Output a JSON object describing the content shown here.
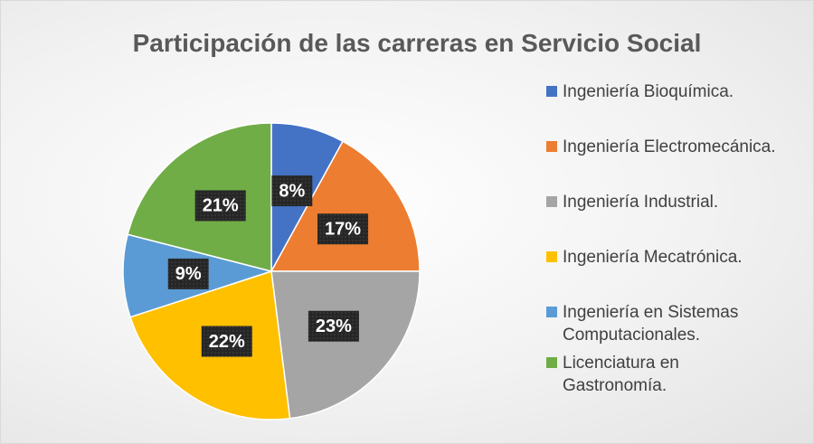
{
  "chart_data": {
    "type": "pie",
    "title": "Participación de las carreras en Servicio Social",
    "categories": [
      "Ingeniería Bioquímica.",
      "Ingeniería Electromecánica.",
      "Ingeniería Industrial.",
      "Ingeniería Mecatrónica.",
      "Ingeniería en Sistemas Computacionales.",
      "Licenciatura en Gastronomía."
    ],
    "values": [
      8,
      17,
      23,
      22,
      9,
      21
    ],
    "value_labels": [
      "8%",
      "17%",
      "23%",
      "22%",
      "9%",
      "21%"
    ],
    "colors": [
      "#4472c4",
      "#ed7d31",
      "#a5a5a5",
      "#ffc000",
      "#5b9bd5",
      "#70ad47"
    ],
    "legend": "right"
  }
}
